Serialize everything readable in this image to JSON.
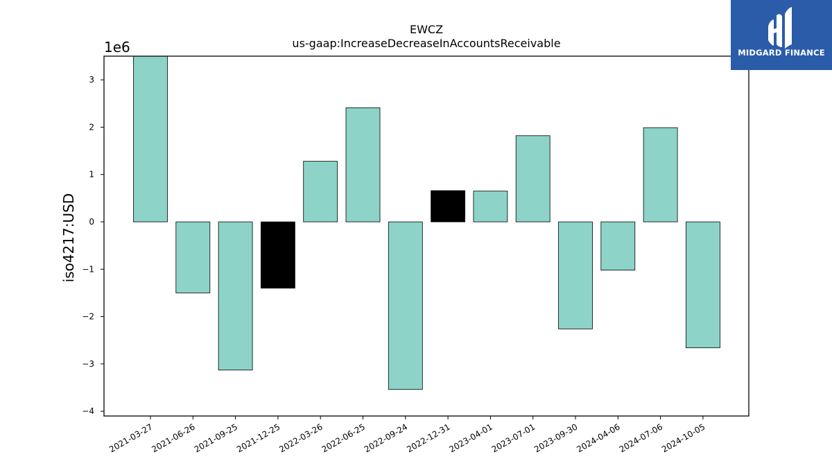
{
  "logo": {
    "text": "MIDGARD FINANCE",
    "icon": "midgard-logo-mark",
    "background": "#2a5caa"
  },
  "chart_data": {
    "type": "bar",
    "title": "EWCZ",
    "subtitle": "us-gaap:IncreaseDecreaseInAccountsReceivable",
    "ylabel": "iso4217:USD",
    "xlabel": "",
    "offset_label": "1e6",
    "scale": 1000000,
    "ylim": [
      -4100000,
      3500000
    ],
    "yticks": [
      -4,
      -3,
      -2,
      -1,
      0,
      1,
      2,
      3
    ],
    "categories": [
      "2021-03-27",
      "2021-06-26",
      "2021-09-25",
      "2021-12-25",
      "2022-03-26",
      "2022-06-25",
      "2022-09-24",
      "2022-12-31",
      "2023-04-01",
      "2023-07-01",
      "2023-09-30",
      "2024-04-06",
      "2024-07-06",
      "2024-10-05"
    ],
    "values": [
      3520000,
      -1500000,
      -3130000,
      -1400000,
      1280000,
      2410000,
      -3540000,
      660000,
      650000,
      1820000,
      -2260000,
      -1020000,
      1990000,
      -2660000
    ],
    "colors": [
      "#8dd3c7",
      "#8dd3c7",
      "#8dd3c7",
      "#000000",
      "#8dd3c7",
      "#8dd3c7",
      "#8dd3c7",
      "#000000",
      "#8dd3c7",
      "#8dd3c7",
      "#8dd3c7",
      "#8dd3c7",
      "#8dd3c7",
      "#8dd3c7"
    ],
    "grid": false,
    "legend": "none"
  }
}
